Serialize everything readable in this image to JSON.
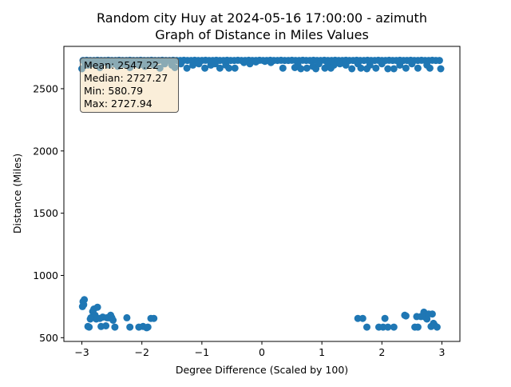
{
  "chart_data": {
    "type": "scatter",
    "title": "Random city Huy at 2024-05-16 17:00:00  - azimuth",
    "subtitle": "Graph of Distance in Miles Values",
    "xlabel": "Degree Difference (Scaled by 100)",
    "ylabel": "Distance (Miles)",
    "xlim": [
      -3.3,
      3.3
    ],
    "ylim": [
      470,
      2840
    ],
    "xticks": [
      -3,
      -2,
      -1,
      0,
      1,
      2,
      3
    ],
    "yticks": [
      500,
      1000,
      1500,
      2000,
      2500
    ],
    "grid": false,
    "marker_color": "#1f77b4",
    "stats_box": {
      "placement": "top-left",
      "lines": [
        "Mean: 2547.22",
        "Median: 2727.27",
        "Min: 580.79",
        "Max: 2727.94"
      ]
    },
    "series": [
      {
        "points": [
          [
            -2.98,
            2727
          ],
          [
            -2.92,
            2728
          ],
          [
            -2.86,
            2727
          ],
          [
            -2.8,
            2727
          ],
          [
            -2.74,
            2728
          ],
          [
            -2.68,
            2727
          ],
          [
            -2.62,
            2727
          ],
          [
            -2.56,
            2728
          ],
          [
            -2.5,
            2727
          ],
          [
            -2.44,
            2727
          ],
          [
            -2.38,
            2728
          ],
          [
            -2.32,
            2727
          ],
          [
            -2.26,
            2727
          ],
          [
            -2.2,
            2728
          ],
          [
            -2.14,
            2727
          ],
          [
            -2.08,
            2727
          ],
          [
            -2.02,
            2728
          ],
          [
            -1.96,
            2727
          ],
          [
            -1.9,
            2727
          ],
          [
            -1.84,
            2728
          ],
          [
            -1.78,
            2727
          ],
          [
            -1.72,
            2727
          ],
          [
            -1.66,
            2728
          ],
          [
            -1.6,
            2727
          ],
          [
            -1.54,
            2727
          ],
          [
            -1.48,
            2728
          ],
          [
            -1.42,
            2727
          ],
          [
            -1.36,
            2727
          ],
          [
            -1.3,
            2728
          ],
          [
            -1.24,
            2727
          ],
          [
            -1.18,
            2727
          ],
          [
            -1.12,
            2728
          ],
          [
            -1.06,
            2727
          ],
          [
            -1.0,
            2727
          ],
          [
            -0.94,
            2728
          ],
          [
            -0.88,
            2727
          ],
          [
            -0.82,
            2727
          ],
          [
            -0.76,
            2728
          ],
          [
            -0.7,
            2727
          ],
          [
            -0.64,
            2727
          ],
          [
            -0.58,
            2728
          ],
          [
            -0.52,
            2727
          ],
          [
            -0.46,
            2727
          ],
          [
            -0.4,
            2728
          ],
          [
            -0.34,
            2727
          ],
          [
            -0.28,
            2727
          ],
          [
            -0.22,
            2728
          ],
          [
            -0.16,
            2727
          ],
          [
            -0.1,
            2727
          ],
          [
            -0.04,
            2728
          ],
          [
            0.02,
            2727
          ],
          [
            0.08,
            2727
          ],
          [
            0.14,
            2728
          ],
          [
            0.2,
            2727
          ],
          [
            0.26,
            2727
          ],
          [
            0.32,
            2728
          ],
          [
            0.38,
            2727
          ],
          [
            0.44,
            2727
          ],
          [
            0.5,
            2728
          ],
          [
            0.56,
            2727
          ],
          [
            0.62,
            2727
          ],
          [
            0.68,
            2728
          ],
          [
            0.74,
            2727
          ],
          [
            0.8,
            2727
          ],
          [
            0.86,
            2728
          ],
          [
            0.92,
            2727
          ],
          [
            0.98,
            2727
          ],
          [
            1.04,
            2728
          ],
          [
            1.1,
            2727
          ],
          [
            1.16,
            2727
          ],
          [
            1.22,
            2728
          ],
          [
            1.28,
            2727
          ],
          [
            1.34,
            2727
          ],
          [
            1.4,
            2728
          ],
          [
            1.46,
            2727
          ],
          [
            1.52,
            2727
          ],
          [
            1.58,
            2728
          ],
          [
            1.64,
            2727
          ],
          [
            1.7,
            2727
          ],
          [
            1.76,
            2728
          ],
          [
            1.82,
            2727
          ],
          [
            1.88,
            2727
          ],
          [
            1.94,
            2728
          ],
          [
            2.0,
            2727
          ],
          [
            2.06,
            2727
          ],
          [
            2.12,
            2728
          ],
          [
            2.18,
            2727
          ],
          [
            2.24,
            2727
          ],
          [
            2.3,
            2728
          ],
          [
            2.36,
            2727
          ],
          [
            2.42,
            2727
          ],
          [
            2.48,
            2728
          ],
          [
            2.54,
            2727
          ],
          [
            2.6,
            2727
          ],
          [
            2.66,
            2728
          ],
          [
            2.72,
            2727
          ],
          [
            2.78,
            2727
          ],
          [
            2.84,
            2728
          ],
          [
            2.9,
            2727
          ],
          [
            2.96,
            2727
          ],
          [
            -2.95,
            2705
          ],
          [
            -2.9,
            2690
          ],
          [
            -2.85,
            2700
          ],
          [
            -2.75,
            2690
          ],
          [
            -2.7,
            2670
          ],
          [
            -2.65,
            2710
          ],
          [
            -2.55,
            2690
          ],
          [
            -2.45,
            2700
          ],
          [
            -2.4,
            2680
          ],
          [
            -2.3,
            2695
          ],
          [
            -2.2,
            2670
          ],
          [
            -2.15,
            2700
          ],
          [
            -2.05,
            2690
          ],
          [
            -1.95,
            2680
          ],
          [
            -1.88,
            2700
          ],
          [
            -1.8,
            2690
          ],
          [
            -1.7,
            2665
          ],
          [
            -1.62,
            2700
          ],
          [
            -1.5,
            2690
          ],
          [
            -1.45,
            2670
          ],
          [
            -1.35,
            2700
          ],
          [
            -1.25,
            2665
          ],
          [
            -1.15,
            2690
          ],
          [
            -1.05,
            2700
          ],
          [
            -0.95,
            2665
          ],
          [
            -0.85,
            2690
          ],
          [
            -0.78,
            2700
          ],
          [
            -0.7,
            2665
          ],
          [
            -0.6,
            2690
          ],
          [
            -0.55,
            2665
          ],
          [
            -0.45,
            2665
          ],
          [
            -0.3,
            2710
          ],
          [
            -0.2,
            2700
          ],
          [
            -0.1,
            2715
          ],
          [
            0.05,
            2720
          ],
          [
            0.15,
            2710
          ],
          [
            0.35,
            2665
          ],
          [
            0.55,
            2670
          ],
          [
            0.6,
            2690
          ],
          [
            0.65,
            2660
          ],
          [
            0.75,
            2665
          ],
          [
            0.85,
            2680
          ],
          [
            0.9,
            2660
          ],
          [
            0.95,
            2700
          ],
          [
            1.05,
            2665
          ],
          [
            1.1,
            2700
          ],
          [
            1.15,
            2665
          ],
          [
            1.2,
            2690
          ],
          [
            1.3,
            2700
          ],
          [
            1.4,
            2690
          ],
          [
            1.5,
            2660
          ],
          [
            1.6,
            2700
          ],
          [
            1.65,
            2665
          ],
          [
            1.75,
            2660
          ],
          [
            1.8,
            2690
          ],
          [
            1.9,
            2665
          ],
          [
            2.0,
            2700
          ],
          [
            2.1,
            2660
          ],
          [
            2.2,
            2660
          ],
          [
            2.3,
            2690
          ],
          [
            2.4,
            2665
          ],
          [
            2.5,
            2700
          ],
          [
            2.6,
            2665
          ],
          [
            2.75,
            2690
          ],
          [
            2.8,
            2665
          ],
          [
            2.98,
            2660
          ],
          [
            -3.0,
            2660
          ],
          [
            -2.98,
            790
          ],
          [
            -2.99,
            750
          ],
          [
            -2.97,
            765
          ],
          [
            -2.96,
            805
          ],
          [
            -2.85,
            660
          ],
          [
            -2.82,
            710
          ],
          [
            -2.8,
            730
          ],
          [
            -2.78,
            680
          ],
          [
            -2.76,
            650
          ],
          [
            -2.74,
            745
          ],
          [
            -2.7,
            655
          ],
          [
            -2.68,
            590
          ],
          [
            -2.65,
            665
          ],
          [
            -2.6,
            595
          ],
          [
            -2.58,
            660
          ],
          [
            -2.55,
            660
          ],
          [
            -2.52,
            680
          ],
          [
            -2.5,
            660
          ],
          [
            -2.48,
            640
          ],
          [
            -2.45,
            585
          ],
          [
            -2.25,
            660
          ],
          [
            -2.2,
            585
          ],
          [
            -2.05,
            585
          ],
          [
            -1.98,
            590
          ],
          [
            -1.92,
            580
          ],
          [
            -1.9,
            585
          ],
          [
            -1.85,
            655
          ],
          [
            -1.8,
            655
          ],
          [
            -2.9,
            590
          ],
          [
            -2.88,
            585
          ],
          [
            -2.86,
            650
          ],
          [
            1.6,
            655
          ],
          [
            1.68,
            655
          ],
          [
            1.75,
            585
          ],
          [
            1.95,
            585
          ],
          [
            2.02,
            585
          ],
          [
            2.05,
            655
          ],
          [
            2.1,
            585
          ],
          [
            2.2,
            585
          ],
          [
            2.38,
            680
          ],
          [
            2.4,
            675
          ],
          [
            2.55,
            585
          ],
          [
            2.58,
            670
          ],
          [
            2.6,
            585
          ],
          [
            2.65,
            670
          ],
          [
            2.7,
            705
          ],
          [
            2.72,
            665
          ],
          [
            2.75,
            650
          ],
          [
            2.78,
            690
          ],
          [
            2.82,
            590
          ],
          [
            2.84,
            690
          ],
          [
            2.86,
            615
          ],
          [
            2.88,
            600
          ],
          [
            2.92,
            585
          ]
        ]
      }
    ]
  }
}
